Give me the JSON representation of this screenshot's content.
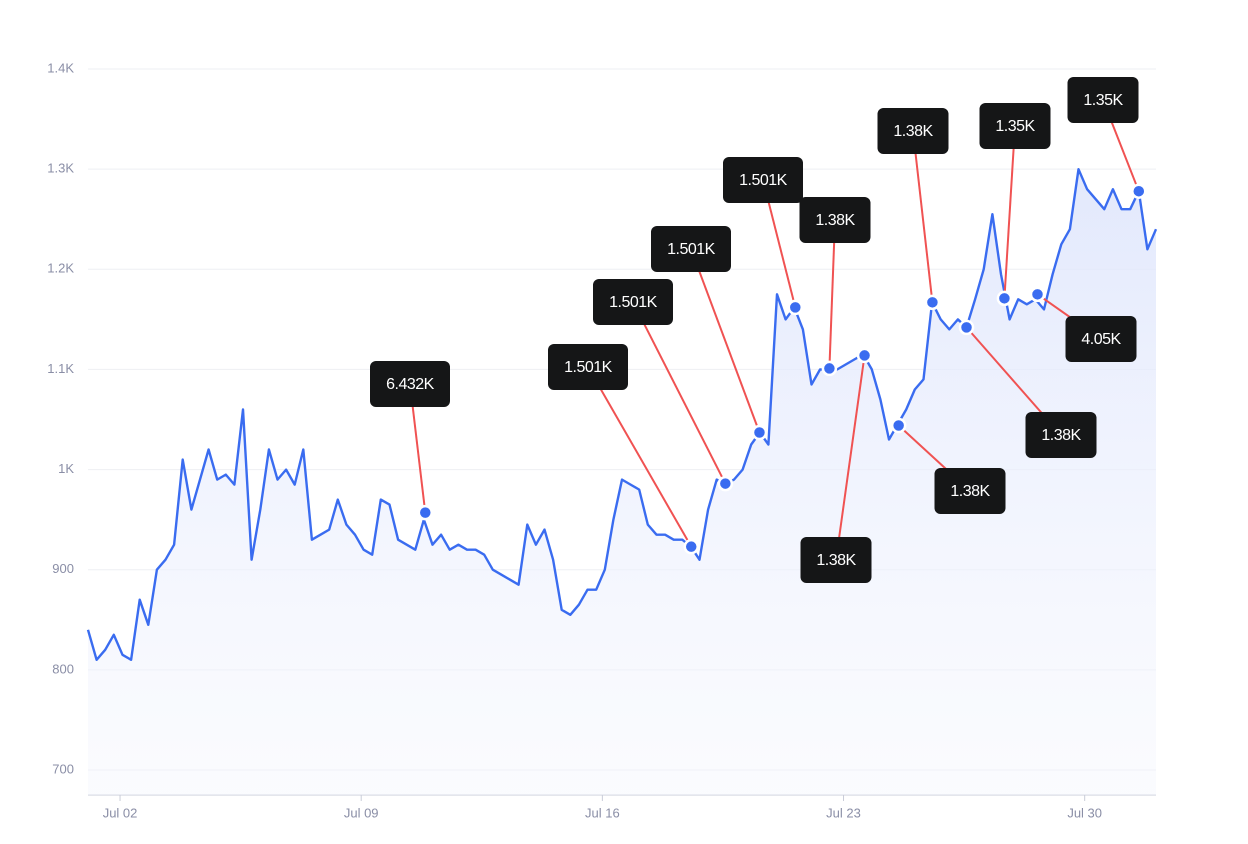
{
  "chart_data": {
    "type": "area",
    "series": [
      {
        "color": "#3a6cf0",
        "x": [
          1.07,
          1.32,
          1.57,
          1.82,
          2.07,
          2.32,
          2.57,
          2.82,
          3.07,
          3.32,
          3.57,
          3.82,
          4.07,
          4.32,
          4.57,
          4.82,
          5.07,
          5.32,
          5.57,
          5.82,
          6.07,
          6.32,
          6.57,
          6.82,
          7.07,
          7.32,
          7.57,
          7.82,
          8.07,
          8.32,
          8.57,
          8.82,
          9.07,
          9.32,
          9.57,
          9.82,
          10.07,
          10.32,
          10.57,
          10.82,
          11.07,
          11.32,
          11.57,
          11.82,
          12.07,
          12.32,
          12.57,
          12.82,
          13.07,
          13.32,
          13.57,
          13.82,
          14.07,
          14.32,
          14.57,
          14.82,
          15.07,
          15.32,
          15.57,
          15.82,
          16.07,
          16.32,
          16.57,
          16.82,
          17.07,
          17.32,
          17.57,
          17.82,
          18.07,
          18.32,
          18.57,
          18.82,
          19.07,
          19.32,
          19.57,
          19.82,
          20.07,
          20.32,
          20.57,
          20.82,
          21.07,
          21.32,
          21.57,
          21.82,
          22.07,
          22.32,
          22.57,
          22.82,
          23.07,
          23.32,
          23.57,
          23.82,
          24.07,
          24.32,
          24.57,
          24.82,
          25.07,
          25.32,
          25.57,
          25.82,
          26.07,
          26.32,
          26.57,
          26.82,
          27.07,
          27.32,
          27.57,
          27.82,
          28.07,
          28.32,
          28.57,
          28.82,
          29.07,
          29.32,
          29.57,
          29.82,
          30.07,
          30.32,
          30.57,
          30.82,
          31.07,
          31.32,
          31.57,
          31.82,
          32.07
        ],
        "values": [
          840,
          810,
          820,
          835,
          815,
          810,
          870,
          845,
          900,
          910,
          925,
          1010,
          960,
          990,
          1020,
          990,
          995,
          985,
          1060,
          910,
          960,
          1020,
          990,
          1000,
          985,
          1020,
          930,
          935,
          940,
          970,
          945,
          935,
          920,
          915,
          970,
          965,
          930,
          925,
          920,
          950,
          925,
          935,
          920,
          925,
          920,
          920,
          915,
          900,
          895,
          890,
          885,
          945,
          925,
          940,
          910,
          860,
          855,
          865,
          880,
          880,
          900,
          950,
          990,
          985,
          980,
          945,
          935,
          935,
          930,
          930,
          923,
          910,
          960,
          990,
          986,
          990,
          1000,
          1025,
          1037,
          1025,
          1175,
          1150,
          1162,
          1140,
          1085,
          1100,
          1100,
          1100,
          1105,
          1110,
          1115,
          1100,
          1070,
          1030,
          1045,
          1060,
          1080,
          1090,
          1167,
          1150,
          1140,
          1150,
          1142,
          1170,
          1200,
          1255,
          1195,
          1150,
          1170,
          1165,
          1170,
          1160,
          1195,
          1225,
          1240,
          1300,
          1280,
          1270,
          1260,
          1280,
          1260,
          1260,
          1278,
          1220,
          1240
        ]
      }
    ],
    "annotations": [
      {
        "x": 10.86,
        "y": 957,
        "label": "6.432K"
      },
      {
        "x": 18.58,
        "y": 923,
        "label": "1.501K"
      },
      {
        "x": 19.57,
        "y": 986,
        "label": "1.501K"
      },
      {
        "x": 20.56,
        "y": 1037,
        "label": "1.501K"
      },
      {
        "x": 21.6,
        "y": 1162,
        "label": "1.501K"
      },
      {
        "x": 22.59,
        "y": 1101,
        "label": "1.38K"
      },
      {
        "x": 23.61,
        "y": 1114,
        "label": "1.38K"
      },
      {
        "x": 24.6,
        "y": 1044,
        "label": "1.38K"
      },
      {
        "x": 25.58,
        "y": 1167,
        "label": "1.38K"
      },
      {
        "x": 26.57,
        "y": 1142,
        "label": "1.38K"
      },
      {
        "x": 27.67,
        "y": 1171,
        "label": "1.35K"
      },
      {
        "x": 28.63,
        "y": 1175,
        "label": "4.05K"
      },
      {
        "x": 31.57,
        "y": 1278,
        "label": "1.35K"
      }
    ],
    "xlim": [
      1.07,
      32.07
    ],
    "xticks": [
      {
        "value": 2,
        "label": "Jul 02"
      },
      {
        "value": 9,
        "label": "Jul 09"
      },
      {
        "value": 16,
        "label": "Jul 16"
      },
      {
        "value": 23,
        "label": "Jul 23"
      },
      {
        "value": 30,
        "label": "Jul 30"
      }
    ],
    "ylim": [
      675,
      1425
    ],
    "yticks": [
      700,
      800,
      900,
      {
        "value": 1000,
        "label": "1K"
      },
      {
        "value": 1100,
        "label": "1.1K"
      },
      {
        "value": 1200,
        "label": "1.2K"
      },
      {
        "value": 1300,
        "label": "1.3K"
      },
      {
        "value": 1400,
        "label": "1.4K"
      }
    ],
    "grid": true
  }
}
